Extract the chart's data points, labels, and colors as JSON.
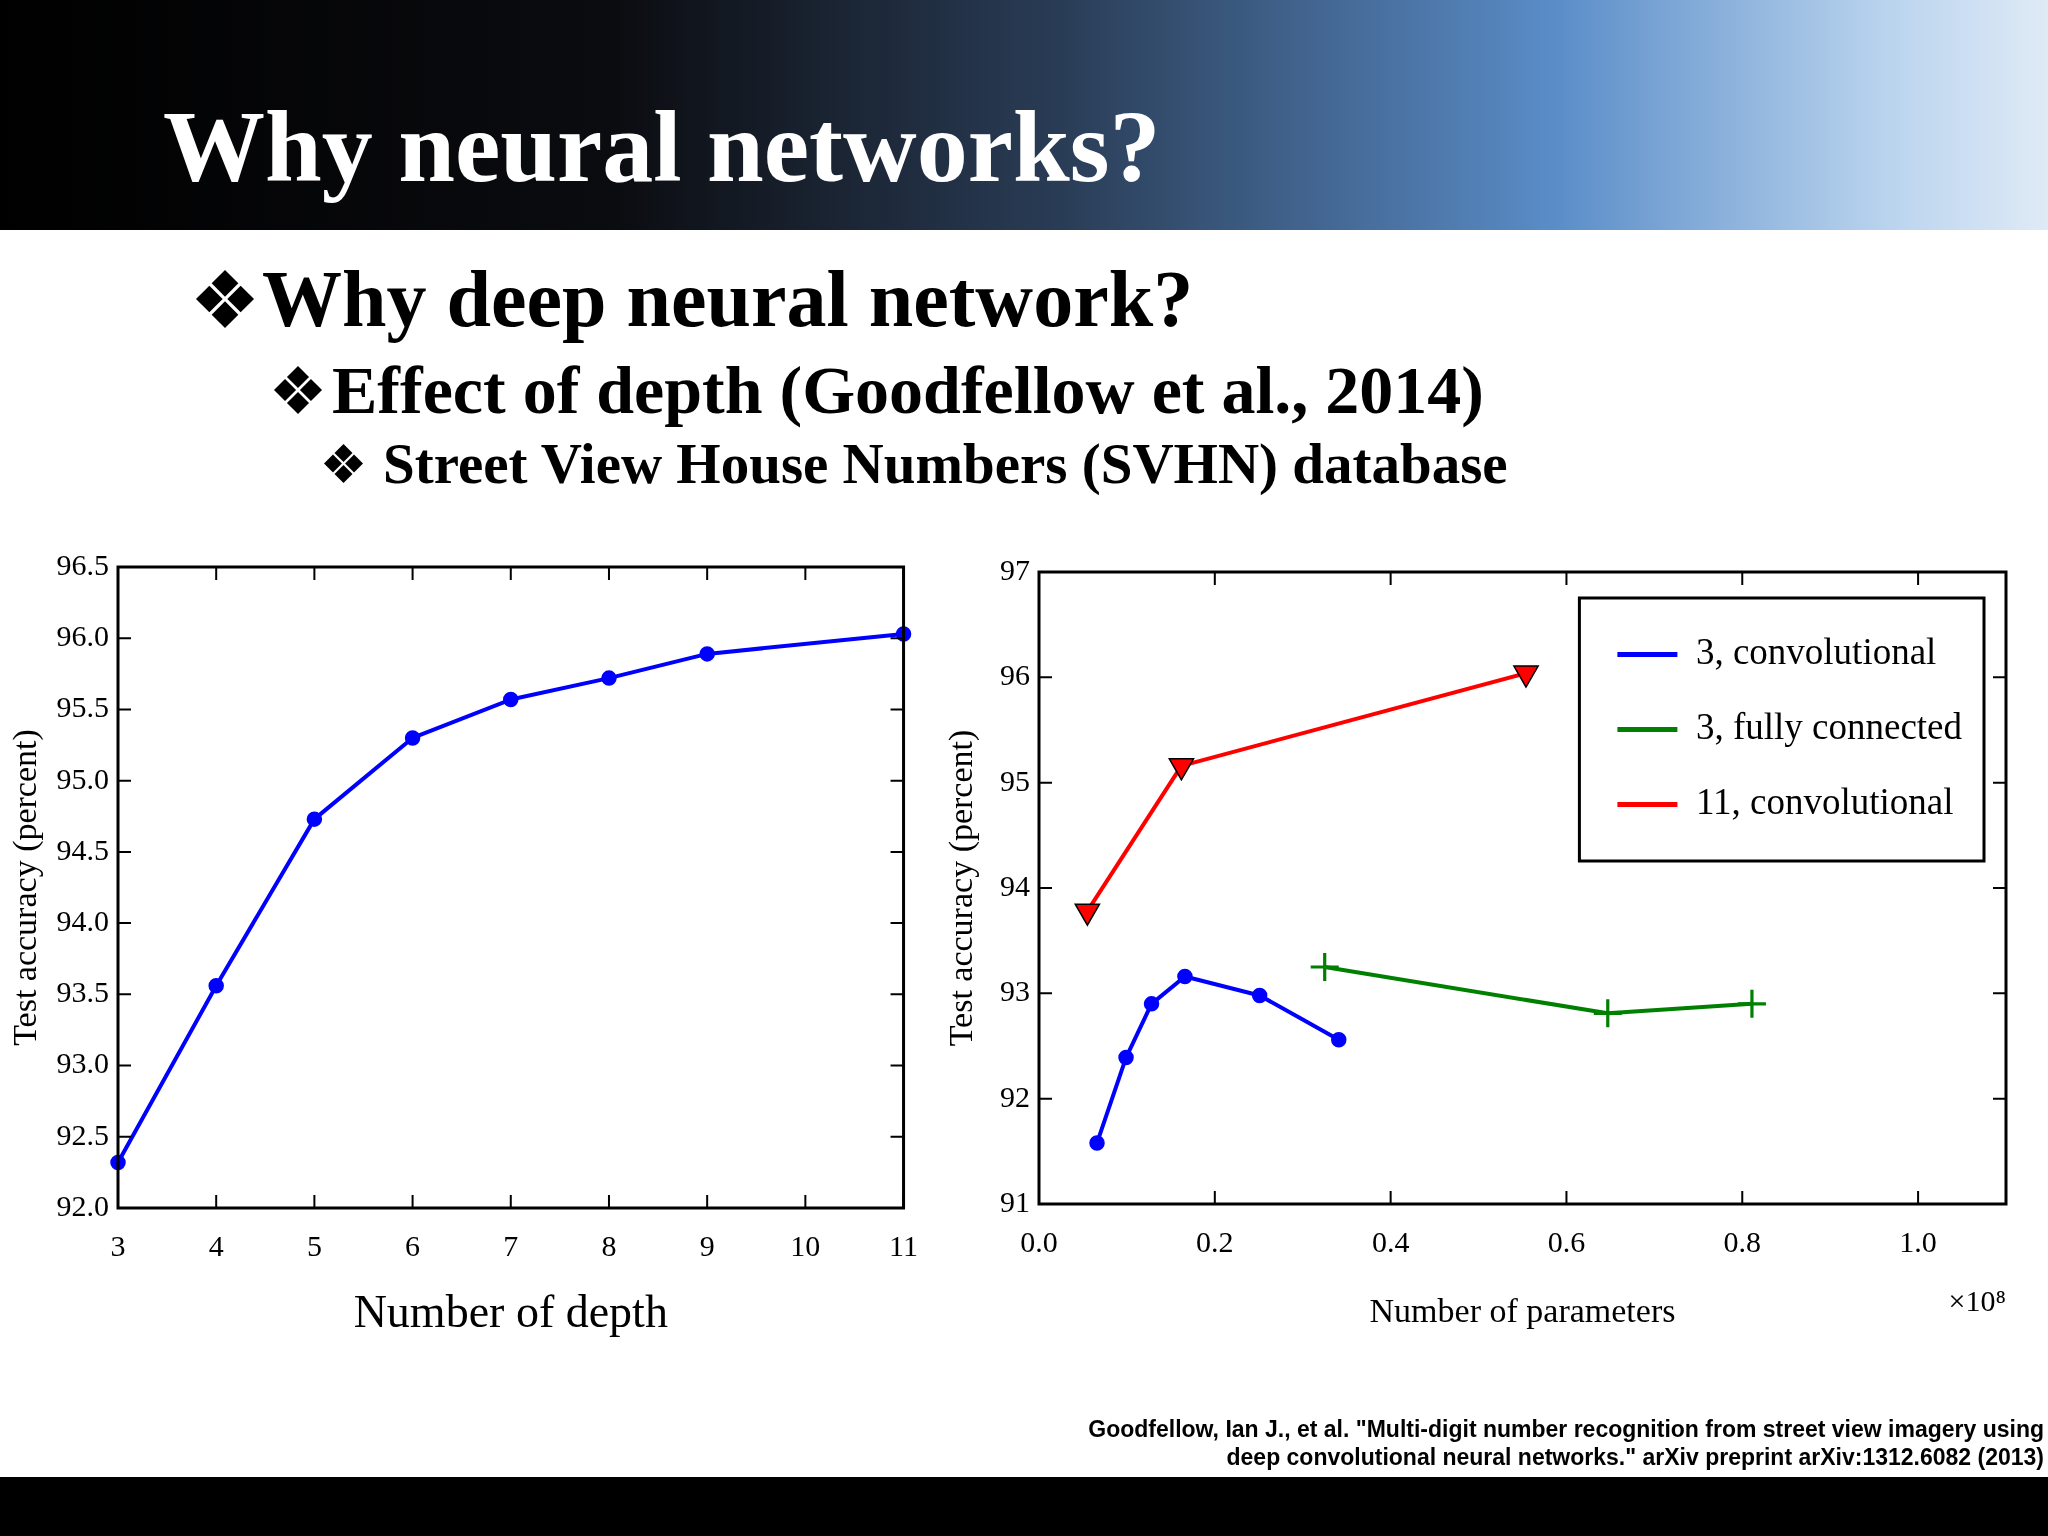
{
  "chart_data": [
    {
      "type": "line",
      "title": "Why neural networks?",
      "subtitle": "Why deep neural network?",
      "annotations": [
        "Effect of depth (Goodfellow et al., 2014)",
        "Street View House Numbers (SVHN) database"
      ],
      "xlabel": "Number of depth",
      "ylabel": "Test accuracy (percent)",
      "x": [
        3,
        4,
        5,
        6,
        7,
        8,
        9,
        11
      ],
      "series": [
        {
          "color": "#0000ff",
          "values": [
            92.32,
            93.56,
            94.73,
            95.3,
            95.57,
            95.72,
            95.89,
            96.03
          ]
        }
      ],
      "marker": "circle",
      "xlim": [
        3,
        11
      ],
      "xticks": [
        3,
        4,
        5,
        6,
        7,
        8,
        9,
        10,
        11
      ],
      "ylim": [
        92,
        96.5
      ],
      "yticks": [
        {
          "value": 92,
          "label": "92.0"
        },
        92.5,
        {
          "value": 93,
          "label": "93.0"
        },
        93.5,
        {
          "value": 94,
          "label": "94.0"
        },
        94.5,
        {
          "value": 95,
          "label": "95.0"
        },
        95.5,
        {
          "value": 96,
          "label": "96.0"
        },
        96.5
      ]
    },
    {
      "type": "line",
      "xlabel": "Number of parameters",
      "ylabel": "Test accuracy (percent)",
      "annotations": [
        "×10⁸",
        "Goodfellow, Ian J., et al. \"Multi-digit number recognition from street view imagery using deep convolutional neural networks.\" arXiv preprint arXiv:1312.6082 (2013)"
      ],
      "series": [
        {
          "name": "3, convolutional",
          "color": "#0000ff",
          "marker": "circle",
          "x": [
            0.066,
            0.099,
            0.128,
            0.166,
            0.251,
            0.341
          ],
          "values": [
            91.58,
            92.39,
            92.9,
            93.16,
            92.98,
            92.56
          ]
        },
        {
          "name": "3, fully connected",
          "color": "#008000",
          "marker": "cross",
          "x": [
            0.325,
            0.647,
            0.811
          ],
          "values": [
            93.25,
            92.81,
            92.9
          ]
        },
        {
          "name": "11, convolutional",
          "color": "#ff0000",
          "marker": "triangle",
          "x": [
            0.055,
            0.162,
            0.554
          ],
          "values": [
            93.78,
            95.16,
            96.04
          ]
        }
      ],
      "xlim": [
        0,
        1.1
      ],
      "xticks": [
        {
          "value": 0,
          "label": "0.0"
        },
        0.2,
        0.4,
        0.6,
        0.8,
        {
          "value": 1,
          "label": "1.0"
        }
      ],
      "ylim": [
        91,
        97
      ],
      "yticks": [
        91,
        92,
        93,
        94,
        95,
        96,
        97
      ],
      "legend": "top right"
    }
  ]
}
